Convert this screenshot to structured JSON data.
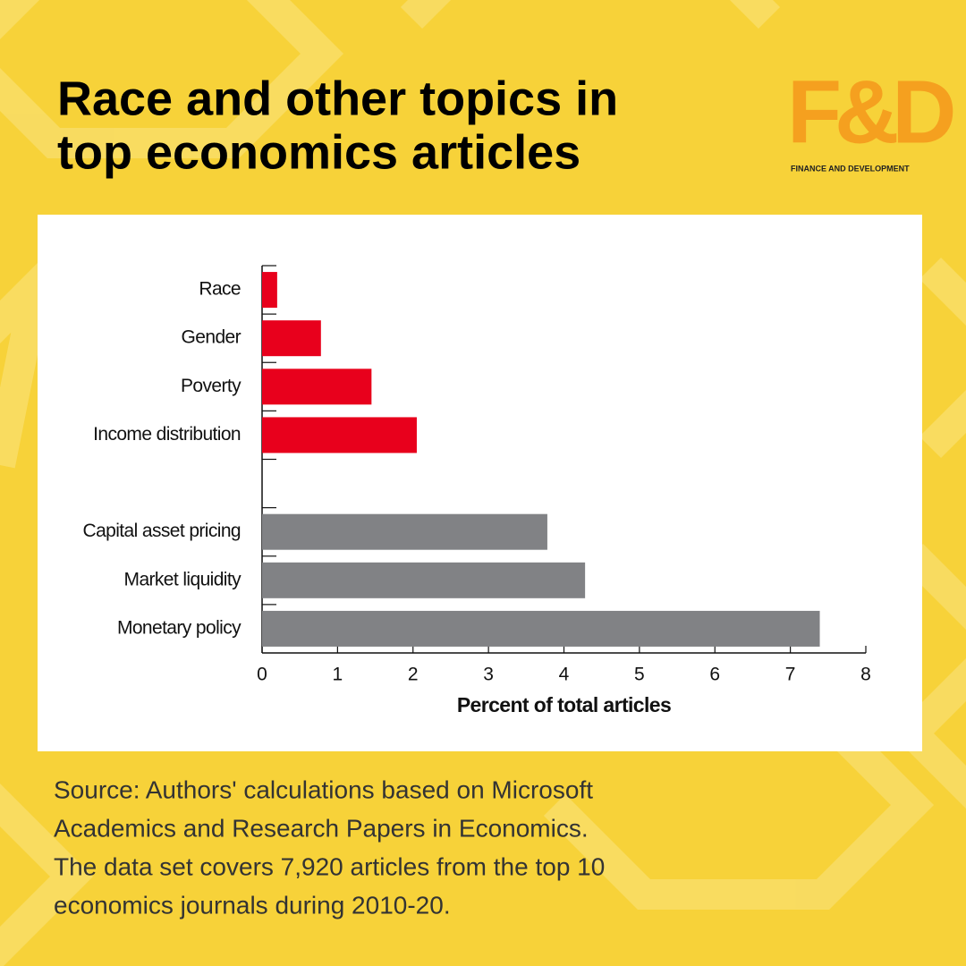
{
  "title_lines": [
    "Race and other topics in",
    "top economics articles"
  ],
  "logo": {
    "text": "F&D",
    "subtitle": "FINANCE AND DEVELOPMENT"
  },
  "chart_data": {
    "type": "barh",
    "categories": [
      "Race",
      "Gender",
      "Poverty",
      "Income distribution",
      null,
      "Capital asset pricing",
      "Market liquidity",
      "Monetary policy"
    ],
    "values": [
      0.2,
      0.78,
      1.45,
      2.05,
      null,
      3.78,
      4.28,
      7.39
    ],
    "colors": [
      "#e8001c",
      "#e8001c",
      "#e8001c",
      "#e8001c",
      null,
      "#818285",
      "#818285",
      "#818285"
    ],
    "xlim": [
      0,
      8
    ],
    "xticks": [
      0,
      1,
      2,
      3,
      4,
      5,
      6,
      7,
      8
    ],
    "xlabel": "Percent of total articles"
  },
  "source_lines": [
    "Source: Authors' calculations based on Microsoft",
    "Academics and Research Papers in Economics.",
    "The data set covers 7,920 articles from the top 10",
    "economics journals during 2010-20."
  ]
}
